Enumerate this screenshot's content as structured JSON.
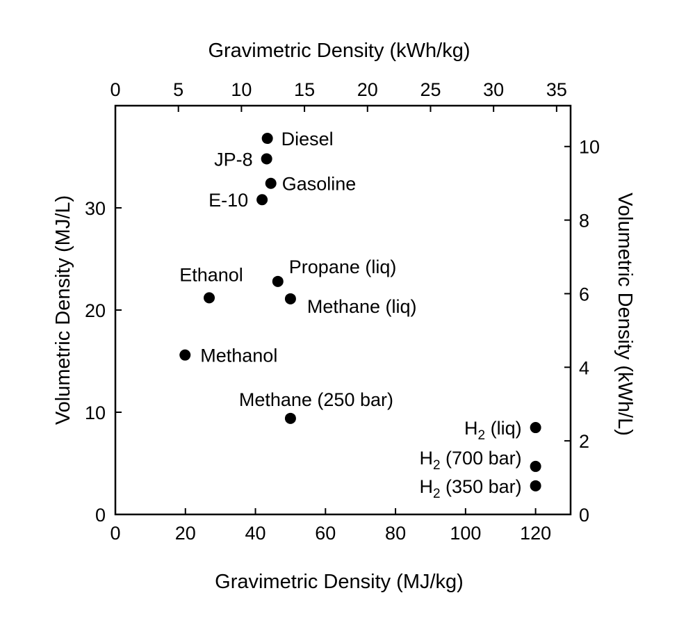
{
  "chart_data": {
    "type": "scatter",
    "title": "",
    "xlabel": "Gravimetric Density (MJ/kg)",
    "ylabel": "Volumetric Density (MJ/L)",
    "x2label": "Gravimetric Density (kWh/kg)",
    "y2label": "Volumetric Density (kWh/L)",
    "xlim": [
      0,
      130
    ],
    "ylim": [
      0,
      40
    ],
    "x2lim": [
      0,
      36.11
    ],
    "y2lim": [
      0,
      11.11
    ],
    "xticks": [
      "0",
      "20",
      "40",
      "60",
      "80",
      "100",
      "120"
    ],
    "yticks": [
      "0",
      "10",
      "20",
      "30"
    ],
    "x2ticks": [
      "0",
      "5",
      "10",
      "15",
      "20",
      "25",
      "30",
      "35"
    ],
    "y2ticks": [
      "0",
      "2",
      "4",
      "6",
      "8",
      "10"
    ],
    "grid": false,
    "legend": "none",
    "points": [
      {
        "label": "Diesel",
        "x": 43.4,
        "y": 36.8
      },
      {
        "label": "JP-8",
        "x": 43.2,
        "y": 34.8
      },
      {
        "label": "Gasoline",
        "x": 44.4,
        "y": 32.4
      },
      {
        "label": "E-10",
        "x": 41.9,
        "y": 30.8
      },
      {
        "label": "Propane (liq)",
        "x": 46.4,
        "y": 22.8
      },
      {
        "label": "Ethanol",
        "x": 26.8,
        "y": 21.2
      },
      {
        "label": "Methane (liq)",
        "x": 50.0,
        "y": 21.1
      },
      {
        "label": "Methanol",
        "x": 19.9,
        "y": 15.6
      },
      {
        "label": "Methane (250 bar)",
        "x": 50.0,
        "y": 9.4
      },
      {
        "label": "H2 (liq)",
        "x": 120.0,
        "y": 8.5
      },
      {
        "label": "H2 (700 bar)",
        "x": 120.0,
        "y": 4.7
      },
      {
        "label": "H2 (350 bar)",
        "x": 120.0,
        "y": 2.8
      }
    ]
  }
}
